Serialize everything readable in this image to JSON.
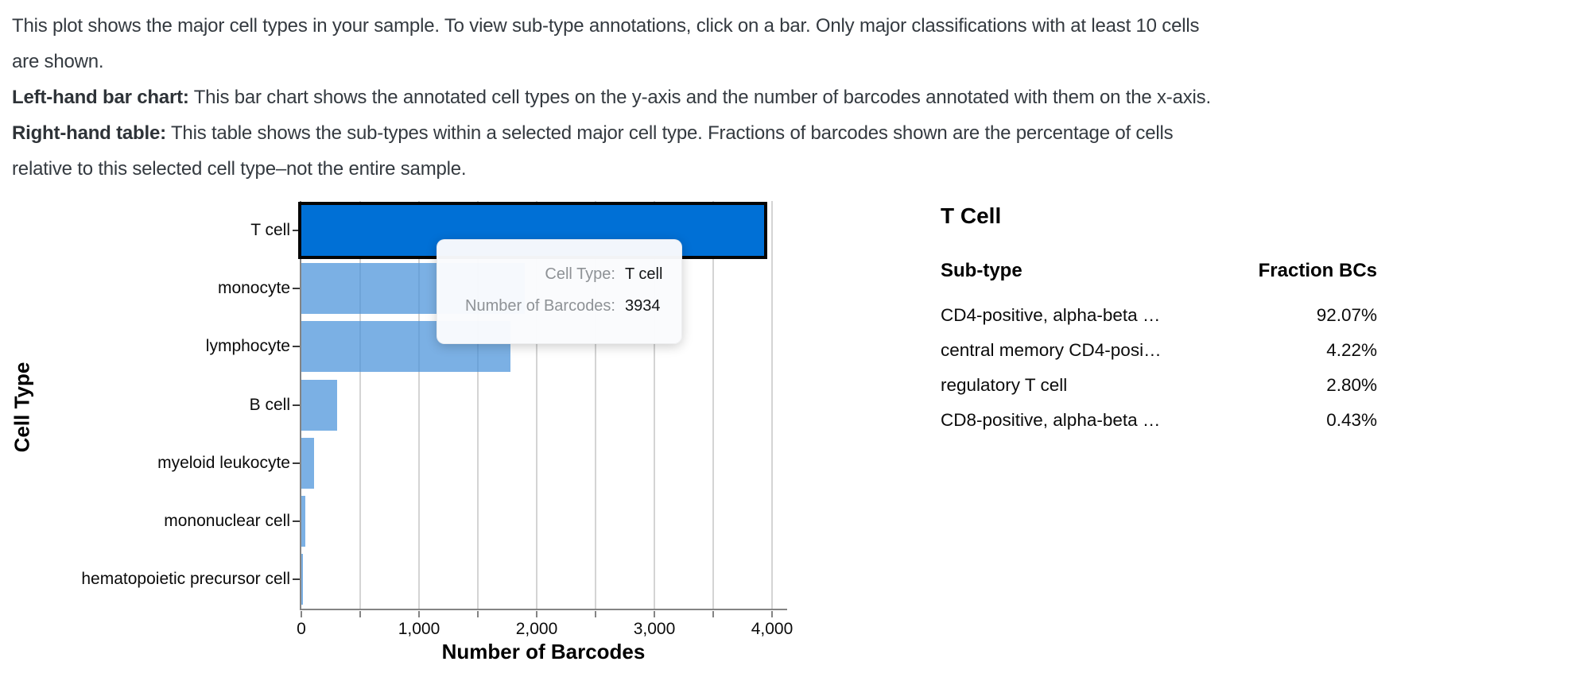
{
  "intro": {
    "lines": [
      {
        "bold": "",
        "text": "This plot shows the major cell types in your sample. To view sub-type annotations, click on a bar. Only major classifications with at least 10 cells"
      },
      {
        "bold": "",
        "text": "are shown."
      },
      {
        "bold": "Left-hand bar chart:",
        "text": " This bar chart shows the annotated cell types on the y-axis and the number of barcodes annotated with them on the x-axis."
      },
      {
        "bold": "Right-hand table:",
        "text": " This table shows the sub-types within a selected major cell type. Fractions of barcodes shown are the percentage of cells"
      },
      {
        "bold": "",
        "text": "relative to this selected cell type–not the entire sample."
      }
    ]
  },
  "chart_data": {
    "type": "bar",
    "orientation": "horizontal",
    "title": "",
    "xlabel": "Number of Barcodes",
    "ylabel": "Cell Type",
    "categories": [
      "T cell",
      "monocyte",
      "lymphocyte",
      "B cell",
      "myeloid leukocyte",
      "mononuclear cell",
      "hematopoietic precursor cell"
    ],
    "values": [
      3934,
      1900,
      1780,
      306,
      105,
      35,
      14
    ],
    "selected_category": "T cell",
    "selected_value": 3934,
    "xlim": [
      0,
      4115
    ],
    "x_major_ticks": [
      0,
      1000,
      2000,
      3000,
      4000
    ],
    "x_tick_labels": [
      "0",
      "1,000",
      "2,000",
      "3,000",
      "4,000"
    ],
    "x_minor_tick_step": 500,
    "grid": "vertical",
    "legend": "none",
    "colors": {
      "bar": "rgba(72,145,218,0.72)",
      "bar_solid_equivalent": "#7EB3E5",
      "selected_bar": "#0070D6",
      "selected_border": "#050505",
      "gridline": "#d4d4d4",
      "axis": "#848484"
    }
  },
  "tooltip": {
    "rows": [
      {
        "label": "Cell Type:",
        "value": "T cell"
      },
      {
        "label": "Number of Barcodes:",
        "value": "3934"
      }
    ]
  },
  "subtype_table": {
    "title": "T Cell",
    "columns": [
      "Sub-type",
      "Fraction BCs"
    ],
    "rows": [
      {
        "subtype": "CD4-positive, alpha-beta …",
        "fraction": "92.07%"
      },
      {
        "subtype": "central memory CD4-posi…",
        "fraction": "4.22%"
      },
      {
        "subtype": "regulatory T cell",
        "fraction": "2.80%"
      },
      {
        "subtype": "CD8-positive, alpha-beta …",
        "fraction": "0.43%"
      }
    ]
  }
}
